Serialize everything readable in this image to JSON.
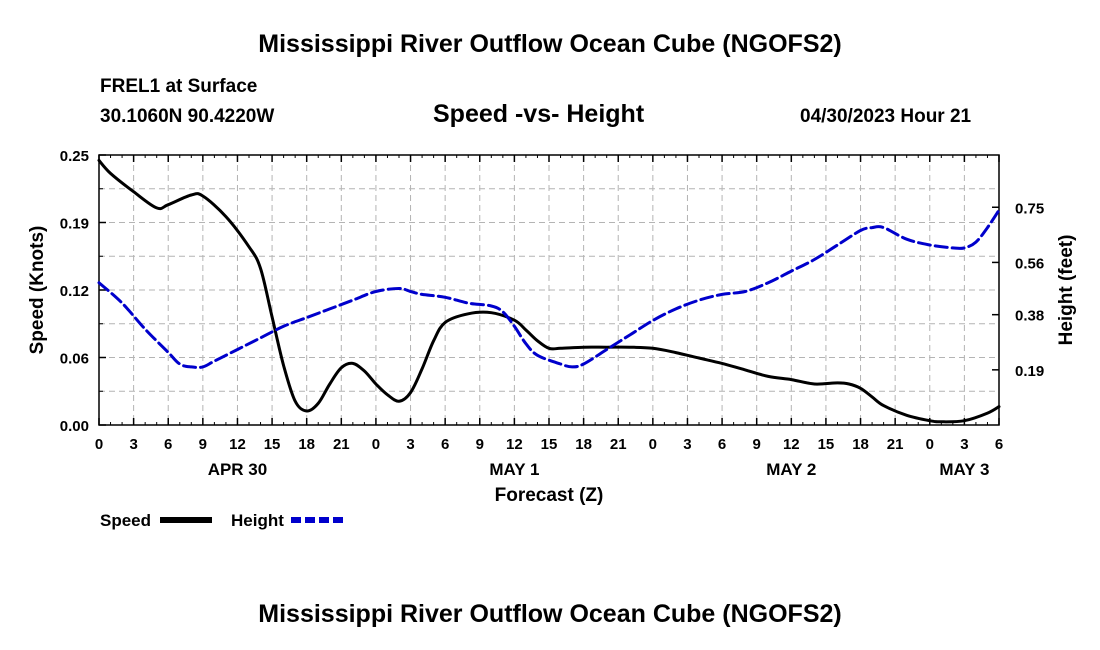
{
  "header": {
    "title": "Mississippi River Outflow Ocean Cube (NGOFS2)",
    "station": "FREL1 at Surface",
    "coordinates": "30.1060N  90.4220W",
    "subtitle": "Speed -vs- Height",
    "datetime": "04/30/2023 Hour 21"
  },
  "footer": {
    "title": "Mississippi River Outflow Ocean Cube (NGOFS2)"
  },
  "chart_data": {
    "type": "line",
    "title": "Speed -vs- Height",
    "xlabel": "Forecast (Z)",
    "ylabel": "Speed (Knots)",
    "y2label": "Height (feet)",
    "x_unit": "hours since APR 30 00Z",
    "xlim": [
      0,
      78
    ],
    "ylim": [
      0,
      0.25
    ],
    "y2lim": [
      0.0,
      0.93
    ],
    "x_ticks": [
      0,
      3,
      6,
      9,
      12,
      15,
      18,
      21,
      24,
      27,
      30,
      33,
      36,
      39,
      42,
      45,
      48,
      51,
      54,
      57,
      60,
      63,
      66,
      69,
      72,
      75,
      78
    ],
    "x_tick_labels": [
      "0",
      "3",
      "6",
      "9",
      "12",
      "15",
      "18",
      "21",
      "0",
      "3",
      "6",
      "9",
      "12",
      "15",
      "18",
      "21",
      "0",
      "3",
      "6",
      "9",
      "12",
      "15",
      "18",
      "21",
      "0",
      "3",
      "6"
    ],
    "date_labels": [
      {
        "x": 12,
        "label": "APR 30"
      },
      {
        "x": 36,
        "label": "MAY 1"
      },
      {
        "x": 60,
        "label": "MAY 2"
      },
      {
        "x": 75,
        "label": "MAY 3"
      }
    ],
    "y_ticks": [
      0,
      0.0625,
      0.125,
      0.1875,
      0.25
    ],
    "y_tick_labels": [
      "0.00",
      "0.06",
      "0.12",
      "0.19",
      "0.25"
    ],
    "y2_ticks": [
      0.19,
      0.38,
      0.56,
      0.75
    ],
    "y2_tick_labels": [
      "0.19",
      "0.38",
      "0.56",
      "0.75"
    ],
    "grid": true,
    "legend_position": "bottom-left",
    "series": [
      {
        "name": "Speed",
        "axis": "left",
        "color": "#000000",
        "dash": "solid",
        "points": [
          [
            0,
            0.245
          ],
          [
            1,
            0.233
          ],
          [
            3,
            0.216
          ],
          [
            5,
            0.201
          ],
          [
            6,
            0.204
          ],
          [
            8,
            0.213
          ],
          [
            9,
            0.212
          ],
          [
            11,
            0.193
          ],
          [
            13,
            0.165
          ],
          [
            14,
            0.145
          ],
          [
            15,
            0.1
          ],
          [
            16,
            0.055
          ],
          [
            17,
            0.022
          ],
          [
            18,
            0.013
          ],
          [
            19,
            0.02
          ],
          [
            20,
            0.038
          ],
          [
            21,
            0.053
          ],
          [
            22,
            0.057
          ],
          [
            23,
            0.05
          ],
          [
            24,
            0.038
          ],
          [
            25,
            0.028
          ],
          [
            26,
            0.022
          ],
          [
            27,
            0.03
          ],
          [
            28,
            0.052
          ],
          [
            29,
            0.078
          ],
          [
            30,
            0.095
          ],
          [
            32,
            0.103
          ],
          [
            34,
            0.104
          ],
          [
            36,
            0.097
          ],
          [
            37,
            0.088
          ],
          [
            38,
            0.078
          ],
          [
            39,
            0.071
          ],
          [
            40,
            0.071
          ],
          [
            42,
            0.072
          ],
          [
            44,
            0.072
          ],
          [
            46,
            0.072
          ],
          [
            48,
            0.071
          ],
          [
            50,
            0.067
          ],
          [
            52,
            0.062
          ],
          [
            54,
            0.057
          ],
          [
            56,
            0.051
          ],
          [
            58,
            0.045
          ],
          [
            60,
            0.042
          ],
          [
            62,
            0.038
          ],
          [
            64,
            0.039
          ],
          [
            65,
            0.038
          ],
          [
            66,
            0.034
          ],
          [
            67,
            0.026
          ],
          [
            68,
            0.018
          ],
          [
            70,
            0.009
          ],
          [
            72,
            0.004
          ],
          [
            73,
            0.003
          ],
          [
            75,
            0.004
          ],
          [
            77,
            0.011
          ],
          [
            78,
            0.017
          ]
        ]
      },
      {
        "name": "Height",
        "axis": "right",
        "color": "#0000cc",
        "dash": "dashed",
        "points": [
          [
            0,
            0.49
          ],
          [
            2,
            0.42
          ],
          [
            4,
            0.33
          ],
          [
            6,
            0.25
          ],
          [
            7,
            0.21
          ],
          [
            8,
            0.2
          ],
          [
            9,
            0.2
          ],
          [
            10,
            0.22
          ],
          [
            12,
            0.26
          ],
          [
            14,
            0.3
          ],
          [
            16,
            0.34
          ],
          [
            18,
            0.37
          ],
          [
            20,
            0.4
          ],
          [
            22,
            0.43
          ],
          [
            24,
            0.46
          ],
          [
            26,
            0.47
          ],
          [
            27,
            0.46
          ],
          [
            28,
            0.45
          ],
          [
            30,
            0.44
          ],
          [
            32,
            0.42
          ],
          [
            34,
            0.41
          ],
          [
            35,
            0.39
          ],
          [
            36,
            0.34
          ],
          [
            37,
            0.28
          ],
          [
            38,
            0.24
          ],
          [
            40,
            0.21
          ],
          [
            41,
            0.2
          ],
          [
            42,
            0.21
          ],
          [
            44,
            0.26
          ],
          [
            46,
            0.31
          ],
          [
            48,
            0.36
          ],
          [
            50,
            0.4
          ],
          [
            52,
            0.43
          ],
          [
            54,
            0.45
          ],
          [
            56,
            0.46
          ],
          [
            58,
            0.49
          ],
          [
            60,
            0.53
          ],
          [
            62,
            0.57
          ],
          [
            64,
            0.62
          ],
          [
            66,
            0.67
          ],
          [
            67,
            0.68
          ],
          [
            68,
            0.68
          ],
          [
            70,
            0.64
          ],
          [
            72,
            0.62
          ],
          [
            74,
            0.61
          ],
          [
            75,
            0.61
          ],
          [
            76,
            0.63
          ],
          [
            77,
            0.68
          ],
          [
            78,
            0.74
          ]
        ]
      }
    ]
  }
}
